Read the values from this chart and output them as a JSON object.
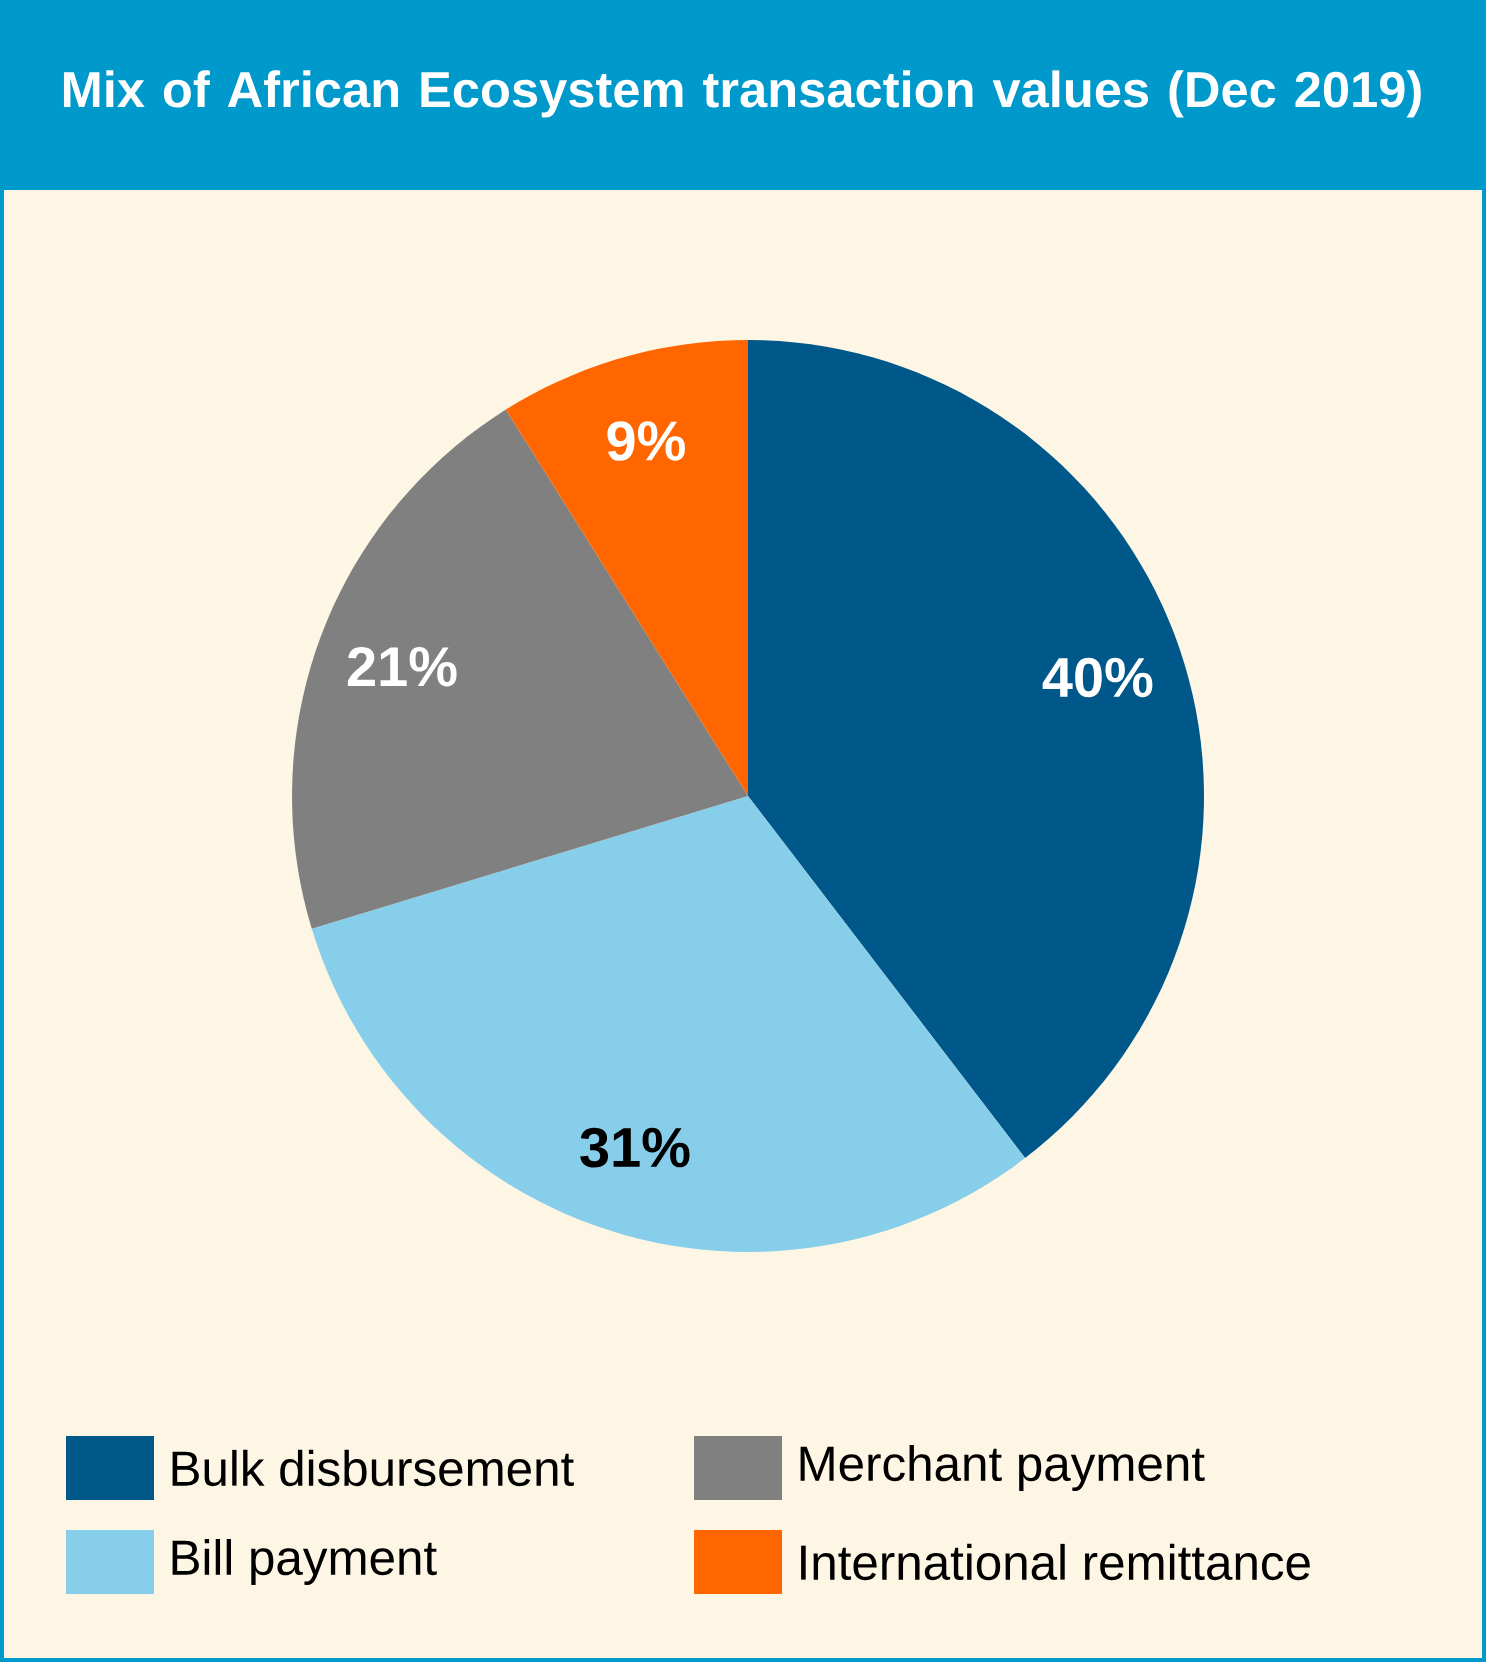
{
  "chart_data": {
    "type": "pie",
    "title": "Mix of African Ecosystem transaction values (Dec 2019)",
    "categories": [
      "Bulk disbursement",
      "Bill payment",
      "Merchant payment",
      "International remittance"
    ],
    "values": [
      40,
      31,
      21,
      9
    ],
    "colors": [
      "#00578a",
      "#87ceeb",
      "#808080",
      "#ff6600"
    ],
    "value_labels": [
      "40%",
      "31%",
      "21%",
      "9%"
    ],
    "legend": "bottom"
  }
}
